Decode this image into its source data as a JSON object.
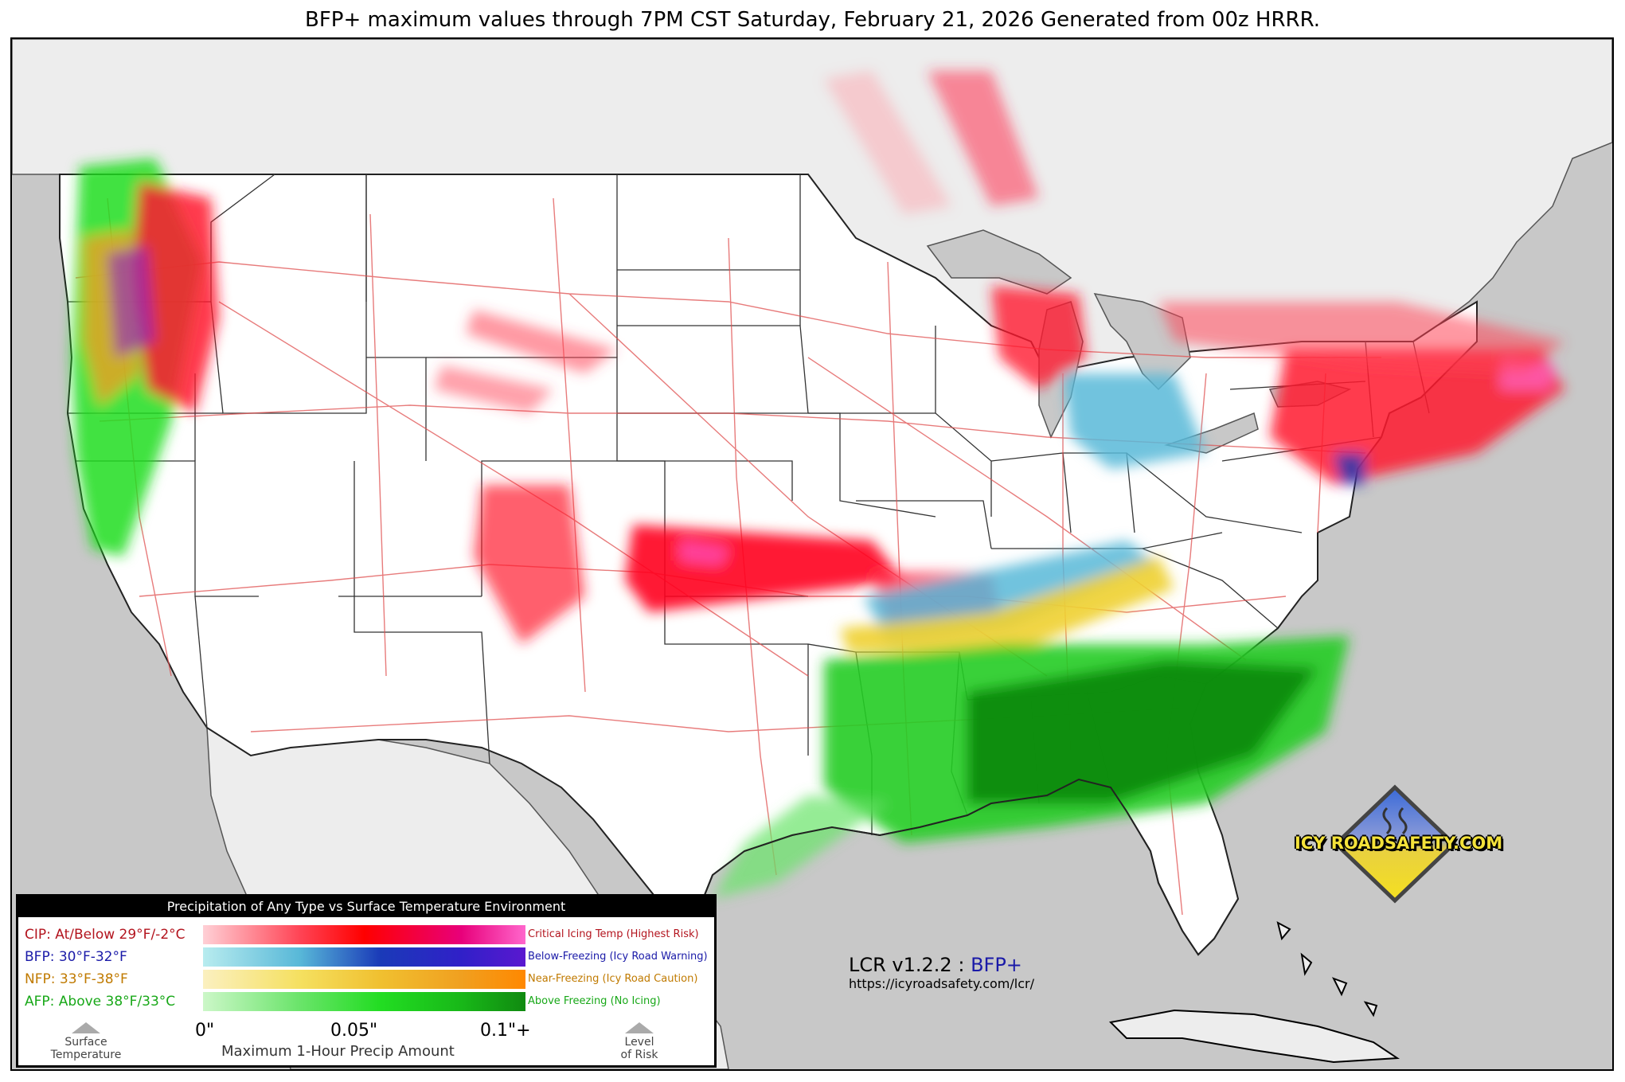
{
  "title": "BFP+ maximum values through 7PM CST Saturday, February 21, 2026 Generated from 00z HRRR.",
  "colors": {
    "ocean": "#c8c8c8",
    "land_foreign": "#ededed",
    "land_us": "#ffffff",
    "roads": "#e05050",
    "borders": "#333333",
    "cip": "#ff1a30",
    "bfp": "#4aa8d8",
    "nfp": "#f0d030",
    "afp": "#22aa22"
  },
  "legend": {
    "header": "Precipitation of Any Type vs Surface Temperature Environment",
    "categories": [
      {
        "label": "CIP: At/Below 29°F/-2°C",
        "description": "Critical Icing Temp (Highest Risk)",
        "color": "#b3141e",
        "gradient": [
          "#ffd0d6",
          "#ff4455",
          "#ff0000",
          "#e8007a",
          "#ff66cc"
        ]
      },
      {
        "label": "BFP: 30°F-32°F",
        "description": "Below-Freezing (Icy Road Warning)",
        "color": "#1a1aa8",
        "gradient": [
          "#b8ecef",
          "#58b8d8",
          "#1a3ab8",
          "#3020c8",
          "#5a18d0"
        ]
      },
      {
        "label": "NFP: 33°F-38°F",
        "description": "Near-Freezing (Icy Road Caution)",
        "color": "#c07a00",
        "gradient": [
          "#fbf0c0",
          "#f5e060",
          "#f0c030",
          "#f0a020",
          "#ff8800"
        ]
      },
      {
        "label": "AFP: Above 38°F/33°C",
        "description": "Above Freezing (No Icing)",
        "color": "#18a818",
        "gradient": [
          "#ccf7c8",
          "#6ae46a",
          "#22dd22",
          "#18b818",
          "#108a10"
        ]
      }
    ],
    "ticks": [
      "0\"",
      "0.05\"",
      "0.1\"+"
    ],
    "x_axis_label": "Maximum 1-Hour Precip Amount",
    "left_arrow_label": [
      "Surface",
      "Temperature"
    ],
    "right_arrow_label": [
      "Level",
      "of Risk"
    ]
  },
  "version": {
    "code": "LCR v1.2.2 :",
    "product": "BFP+",
    "url": "https://icyroadsafety.com/lcr/"
  },
  "logo": {
    "text": "ICY ROADSAFETY.COM"
  }
}
